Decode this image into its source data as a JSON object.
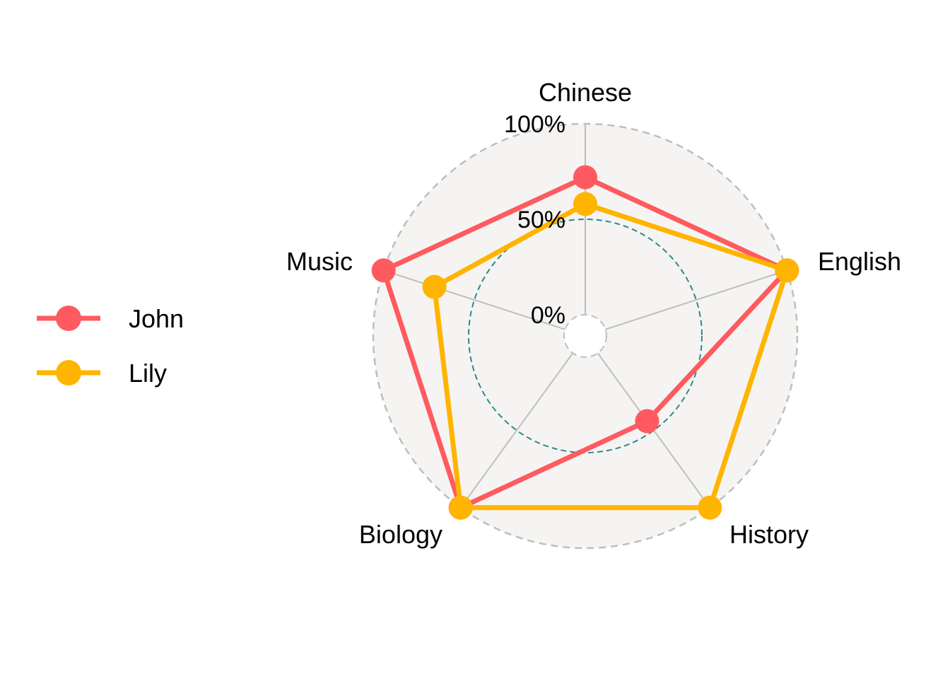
{
  "chart_data": {
    "type": "radar",
    "axes": [
      "Chinese",
      "English",
      "History",
      "Biology",
      "Music"
    ],
    "radial_ticks": [
      "0%",
      "50%",
      "100%"
    ],
    "ylim": [
      0,
      100
    ],
    "reference_ring": 50,
    "grid": true,
    "legend_position": "left",
    "series": [
      {
        "name": "John",
        "values": [
          72,
          100,
          44,
          100,
          100
        ],
        "color": "#FF5A5F"
      },
      {
        "name": "Lily",
        "values": [
          58,
          100,
          100,
          100,
          72
        ],
        "color": "#FFB400"
      }
    ],
    "background_color": "#F5F4F2",
    "grid_color": "#BEBEBE",
    "reference_ring_color": "#2A8A8F"
  }
}
